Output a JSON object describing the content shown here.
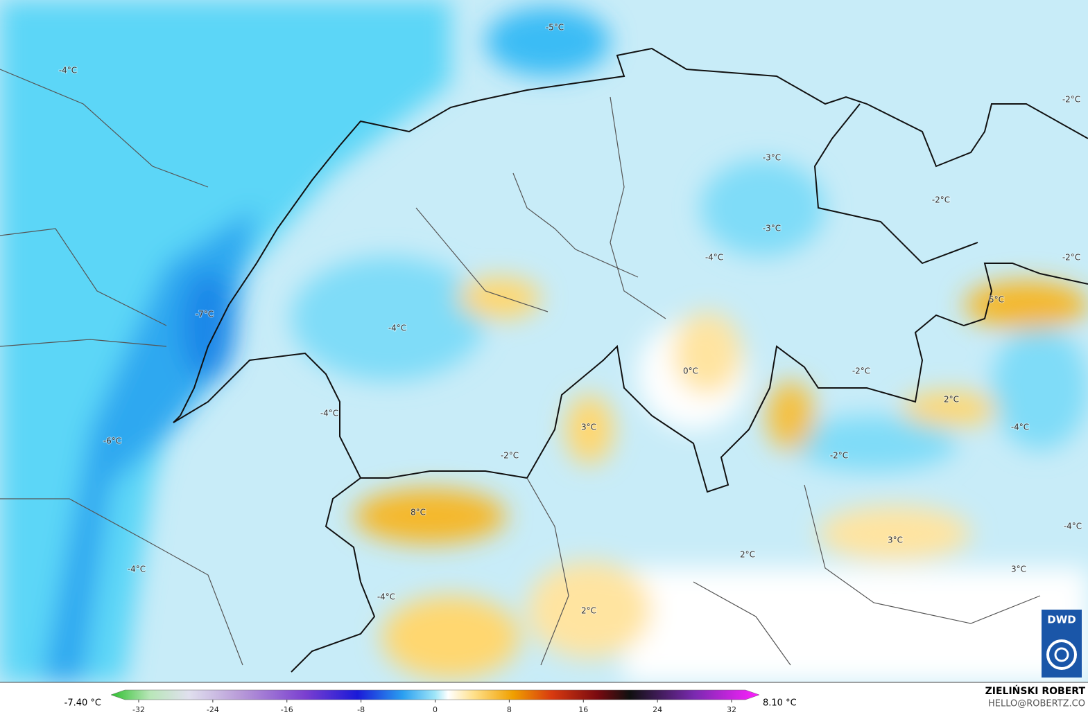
{
  "map": {
    "labels": [
      "-5°C",
      "-4°C",
      "-2°C",
      "-3°C",
      "-2°C",
      "-3°C",
      "-4°C",
      "-2°C",
      "5°C",
      "-7°C",
      "-4°C",
      "0°C",
      "-2°C",
      "2°C",
      "-4°C",
      "3°C",
      "-4°C",
      "-6°C",
      "-2°C",
      "-2°C",
      "8°C",
      "-4°C",
      "3°C",
      "2°C",
      "-4°C",
      "3°C",
      "-4°C",
      "2°C"
    ]
  },
  "legend": {
    "min_label": "-7.40 °C",
    "max_label": "8.10 °C",
    "ticks": [
      -32,
      -24,
      -16,
      -8,
      0,
      8,
      16,
      24,
      32
    ]
  },
  "credit": {
    "name": "ZIELIŃSKI ROBERT",
    "contact": "HELLO@ROBERTZ.CO"
  },
  "logo": "DWD"
}
